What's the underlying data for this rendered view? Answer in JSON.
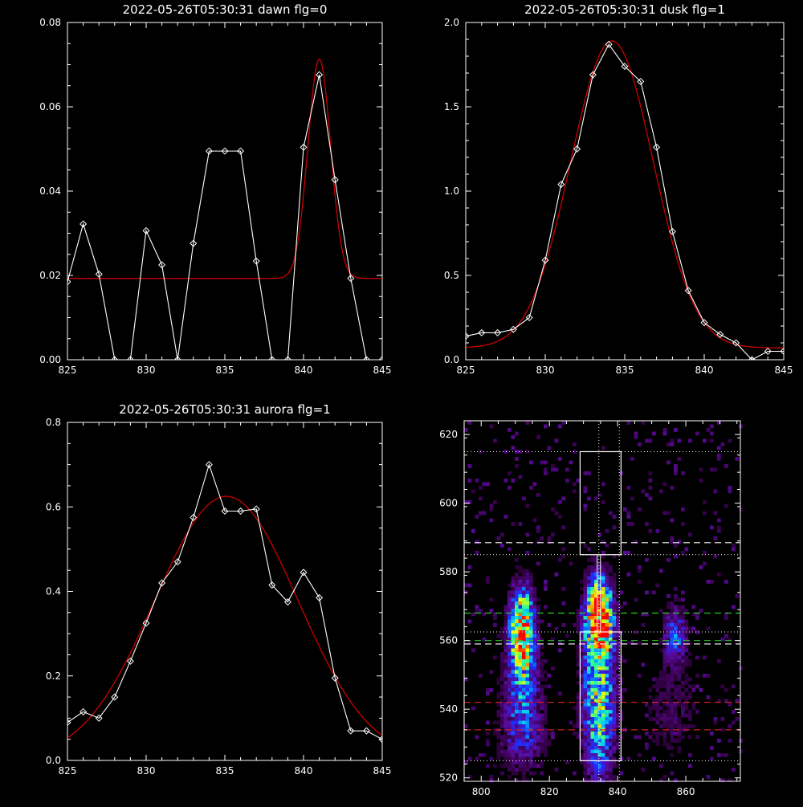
{
  "chart_data": [
    {
      "type": "line",
      "title": "2022-05-26T05:30:31 dawn flg=0",
      "xlim": [
        825,
        845
      ],
      "ylim": [
        0,
        0.08
      ],
      "xticks": [
        "825",
        "830",
        "835",
        "840",
        "845"
      ],
      "yticks": [
        "0.00",
        "0.02",
        "0.04",
        "0.06",
        "0.08"
      ],
      "series": [
        {
          "role": "data",
          "color": "#ffffff",
          "marker": "diamond",
          "x": [
            825,
            826,
            827,
            828,
            829,
            830,
            831,
            832,
            833,
            834,
            835,
            836,
            837,
            838,
            839,
            840,
            841,
            842,
            843,
            844,
            845
          ],
          "y": [
            0.0185,
            0.0322,
            0.0203,
            0.0,
            0.0,
            0.0306,
            0.0225,
            0.0,
            0.0276,
            0.0495,
            0.0495,
            0.0495,
            0.0234,
            0.0,
            0.0,
            0.0504,
            0.0676,
            0.0427,
            0.0193,
            0.0,
            0.0
          ]
        },
        {
          "role": "fit",
          "color": "#cc0000",
          "model": "gaussian",
          "base": 0.0193,
          "amp": 0.052,
          "center": 841.0,
          "sigma": 0.72
        }
      ]
    },
    {
      "type": "line",
      "title": "2022-05-26T05:30:31 dusk flg=1",
      "xlim": [
        825,
        845
      ],
      "ylim": [
        0,
        2.0
      ],
      "xticks": [
        "825",
        "830",
        "835",
        "840",
        "845"
      ],
      "yticks": [
        "0.0",
        "0.5",
        "1.0",
        "1.5",
        "2.0"
      ],
      "series": [
        {
          "role": "data",
          "color": "#ffffff",
          "marker": "diamond",
          "x": [
            825,
            826,
            827,
            828,
            829,
            830,
            831,
            832,
            833,
            834,
            835,
            836,
            837,
            838,
            839,
            840,
            841,
            842,
            843,
            844,
            845
          ],
          "y": [
            0.14,
            0.16,
            0.16,
            0.18,
            0.25,
            0.59,
            1.04,
            1.25,
            1.69,
            1.87,
            1.74,
            1.65,
            1.26,
            0.76,
            0.41,
            0.22,
            0.15,
            0.1,
            0.0,
            0.05,
            0.05
          ]
        },
        {
          "role": "fit",
          "color": "#cc0000",
          "model": "gaussian",
          "base": 0.07,
          "amp": 1.82,
          "center": 834.2,
          "sigma": 2.6
        }
      ]
    },
    {
      "type": "line",
      "title": "2022-05-26T05:30:31 aurora flg=1",
      "xlim": [
        825,
        845
      ],
      "ylim": [
        0,
        0.8
      ],
      "xticks": [
        "825",
        "830",
        "835",
        "840",
        "845"
      ],
      "yticks": [
        "0.0",
        "0.2",
        "0.4",
        "0.6",
        "0.8"
      ],
      "series": [
        {
          "role": "data",
          "color": "#ffffff",
          "marker": "diamond",
          "x": [
            825,
            826,
            827,
            828,
            829,
            830,
            831,
            832,
            833,
            834,
            835,
            836,
            837,
            838,
            839,
            840,
            841,
            842,
            843,
            844,
            845
          ],
          "y": [
            0.09,
            0.115,
            0.1,
            0.15,
            0.235,
            0.325,
            0.42,
            0.47,
            0.575,
            0.7,
            0.59,
            0.59,
            0.595,
            0.415,
            0.375,
            0.445,
            0.385,
            0.195,
            0.07,
            0.07,
            0.05
          ]
        },
        {
          "role": "fit",
          "color": "#cc0000",
          "model": "gaussian",
          "base": 0.0,
          "amp": 0.625,
          "center": 835.1,
          "sigma": 4.55
        }
      ]
    },
    {
      "type": "heatmap",
      "xlim": [
        795,
        876
      ],
      "ylim": [
        519,
        624
      ],
      "xticks": [
        "800",
        "820",
        "840",
        "860"
      ],
      "yticks": [
        "520",
        "540",
        "560",
        "580",
        "600",
        "620"
      ],
      "colormap": [
        "#000000",
        "#330044",
        "#5a0a9a",
        "#1e2cff",
        "#00c8ff",
        "#30ff90",
        "#e8ff00",
        "#ff7a00",
        "#ff0000"
      ],
      "blobs": [
        {
          "x": 812,
          "y": 563,
          "sx": 2.5,
          "sy": 9,
          "amp": 0.85
        },
        {
          "x": 834.5,
          "y": 567,
          "sx": 2.8,
          "sy": 8,
          "amp": 1.0
        },
        {
          "x": 834.5,
          "y": 541,
          "sx": 3.5,
          "sy": 15,
          "amp": 0.6
        },
        {
          "x": 857,
          "y": 562,
          "sx": 2.5,
          "sy": 6,
          "amp": 0.35
        },
        {
          "x": 812,
          "y": 545,
          "sx": 4,
          "sy": 12,
          "amp": 0.3
        },
        {
          "x": 812,
          "y": 531,
          "sx": 6,
          "sy": 8,
          "amp": 0.16
        },
        {
          "x": 856,
          "y": 540,
          "sx": 7,
          "sy": 12,
          "amp": 0.14
        }
      ],
      "dotted_vertical_lines": [
        834.5,
        840.5
      ],
      "dotted_horizontal_lines": [
        615,
        585,
        562.5,
        525
      ],
      "boxes": [
        {
          "x": [
            829,
            841
          ],
          "y": [
            585,
            615
          ]
        },
        {
          "x": [
            829,
            841
          ],
          "y": [
            525,
            562.5
          ]
        }
      ],
      "dashed_lines": [
        {
          "y": 588.5,
          "color": "#ffffff"
        },
        {
          "y": 568,
          "color": "#22cc22"
        },
        {
          "y": 560,
          "color": "#22cc22"
        },
        {
          "y": 559,
          "color": "#ffffff"
        },
        {
          "y": 542,
          "color": "#cc2222"
        },
        {
          "y": 534,
          "color": "#cc2222"
        }
      ]
    }
  ]
}
